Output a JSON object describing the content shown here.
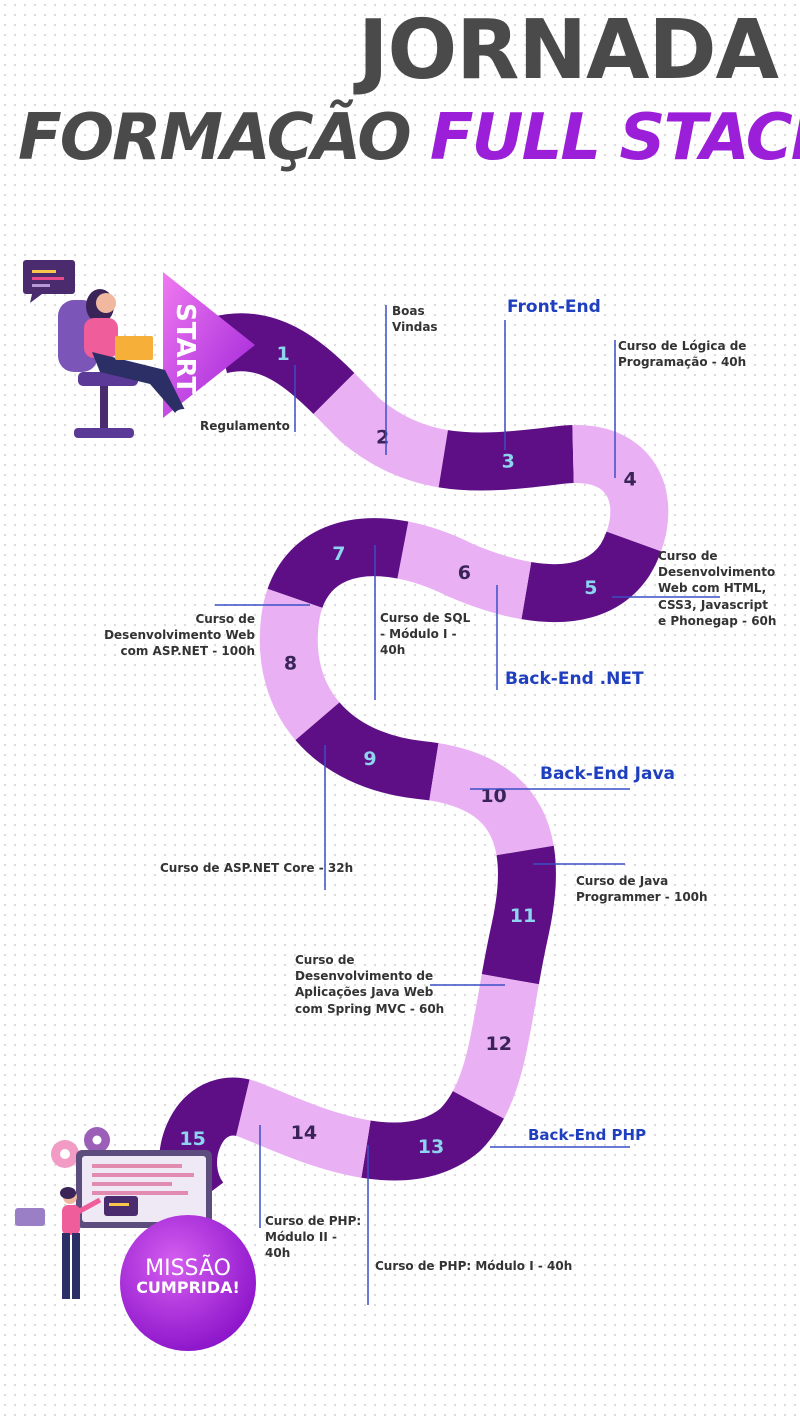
{
  "title": {
    "line1": "JORNADA",
    "line2_part1": "FORMAÇÃO",
    "line2_part2": "FULL STACK"
  },
  "start_label": "START",
  "end_label": {
    "line1": "MISSÃO",
    "line2": "CUMPRIDA!"
  },
  "steps": [
    "1",
    "2",
    "3",
    "4",
    "5",
    "6",
    "7",
    "8",
    "9",
    "10",
    "11",
    "12",
    "13",
    "14",
    "15"
  ],
  "sections": {
    "front_end": "Front-End",
    "back_end_net": "Back-End .NET",
    "back_end_java": "Back-End Java",
    "back_end_php": "Back-End PHP"
  },
  "labels": {
    "regulamento": "Regulamento",
    "boas_vindas": "Boas Vindas",
    "logica": "Curso de Lógica de Programação - 40h",
    "html_css": "Curso de Desenvolvimento Web com HTML, CSS3, Javascript e Phonegap - 60h",
    "aspnet_mvc": "Curso de Desenvolvimento Web com ASP.NET - 100h",
    "sql": "Curso de SQL - Módulo I - 40h",
    "aspnet_core": "Curso de ASP.NET Core - 32h",
    "java_programmer": "Curso de Java Programmer - 100h",
    "java_web": "Curso de Desenvolvimento de Aplicações Java Web com Spring MVC - 60h",
    "php1": "Curso de PHP: Módulo I - 40h",
    "php2": "Curso de PHP: Módulo II - 40h"
  },
  "icons": {
    "start_illustration": "woman-at-laptop-illustration",
    "end_illustration": "woman-at-board-illustration"
  },
  "colors": {
    "dark_segment": "#5e0f86",
    "light_segment": "#eab0f4",
    "step_number": "#8ed3ef",
    "accent": "#9b1fd8",
    "section_text": "#1f3fbf"
  }
}
